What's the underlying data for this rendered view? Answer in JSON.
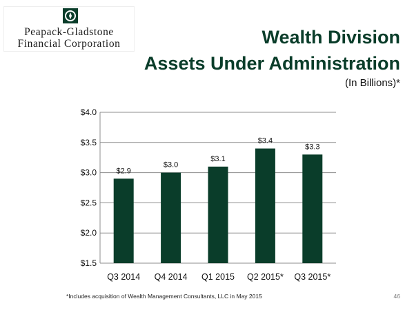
{
  "logo": {
    "line1": "Peapack-Gladstone",
    "line2": "Financial Corporation"
  },
  "slide": {
    "title_line1": "Wealth Division",
    "title_line2": "Assets Under Administration",
    "subtitle": "(In Billions)*",
    "footnote": "*Includes acquisition of Wealth Management Consultants, LLC in May 2015",
    "page_number": "46"
  },
  "colors": {
    "bar": "#0a3d2a",
    "title": "#0a3d2a"
  },
  "chart_data": {
    "type": "bar",
    "title": "Wealth Division Assets Under Administration",
    "xlabel": "",
    "ylabel": "(In Billions)*",
    "categories": [
      "Q3 2014",
      "Q4 2014",
      "Q1 2015",
      "Q2 2015*",
      "Q3 2015*"
    ],
    "values": [
      2.9,
      3.0,
      3.1,
      3.4,
      3.3
    ],
    "data_labels": [
      "$2.9",
      "$3.0",
      "$3.1",
      "$3.4",
      "$3.3"
    ],
    "ylim": [
      1.5,
      4.0
    ],
    "yticks": [
      1.5,
      2.0,
      2.5,
      3.0,
      3.5,
      4.0
    ],
    "ytick_labels": [
      "$1.5",
      "$2.0",
      "$2.5",
      "$3.0",
      "$3.5",
      "$4.0"
    ],
    "grid": true,
    "legend": "none"
  }
}
